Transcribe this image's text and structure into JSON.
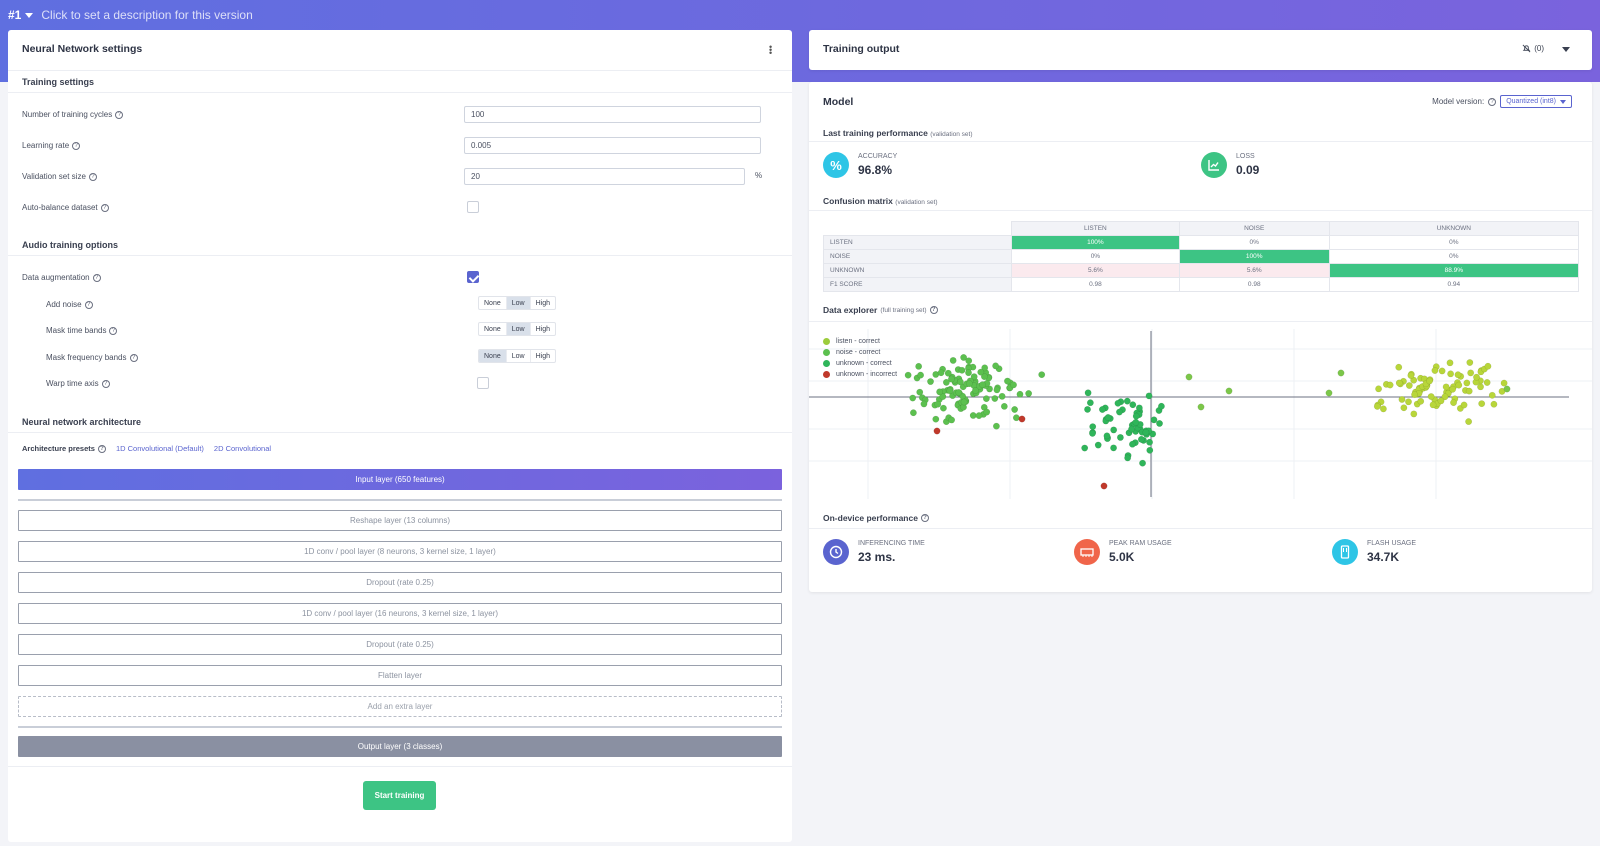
{
  "topbar": {
    "version": "#1",
    "description_placeholder": "Click to set a description for this version"
  },
  "left_panel": {
    "title": "Neural Network settings",
    "training_settings": {
      "heading": "Training settings",
      "cycles_label": "Number of training cycles",
      "cycles_value": "100",
      "lr_label": "Learning rate",
      "lr_value": "0.005",
      "val_label": "Validation set size",
      "val_value": "20",
      "val_unit": "%",
      "autobalance_label": "Auto-balance dataset"
    },
    "audio_options": {
      "heading": "Audio training options",
      "augmentation_label": "Data augmentation",
      "add_noise_label": "Add noise",
      "mask_time_label": "Mask time bands",
      "mask_freq_label": "Mask frequency bands",
      "warp_label": "Warp time axis",
      "levels": [
        "None",
        "Low",
        "High"
      ],
      "add_noise_selected": "Low",
      "mask_time_selected": "Low",
      "mask_freq_selected": "None"
    },
    "architecture": {
      "heading": "Neural network architecture",
      "presets_label": "Architecture presets",
      "preset_1": "1D Convolutional (Default)",
      "preset_2": "2D Convolutional",
      "layers": [
        "Input layer (650 features)",
        "Reshape layer (13 columns)",
        "1D conv / pool layer (8 neurons, 3 kernel size, 1 layer)",
        "Dropout (rate 0.25)",
        "1D conv / pool layer (16 neurons, 3 kernel size, 1 layer)",
        "Dropout (rate 0.25)",
        "Flatten layer",
        "Add an extra layer",
        "Output layer (3 classes)"
      ]
    },
    "start_button": "Start training"
  },
  "training_output": {
    "title": "Training output",
    "notifications": "(0)"
  },
  "model": {
    "title": "Model",
    "version_label": "Model version:",
    "version_value": "Quantized (int8)",
    "last_perf_heading": "Last training performance",
    "last_perf_note": "(validation set)",
    "accuracy_label": "ACCURACY",
    "accuracy_value": "96.8%",
    "loss_label": "LOSS",
    "loss_value": "0.09",
    "confusion_heading": "Confusion matrix",
    "confusion_note": "(validation set)",
    "confusion": {
      "columns": [
        "LISTEN",
        "NOISE",
        "UNKNOWN"
      ],
      "rows": [
        {
          "label": "LISTEN",
          "cells": [
            "100%",
            "0%",
            "0%"
          ]
        },
        {
          "label": "NOISE",
          "cells": [
            "0%",
            "100%",
            "0%"
          ]
        },
        {
          "label": "UNKNOWN",
          "cells": [
            "5.6%",
            "5.6%",
            "88.9%"
          ]
        },
        {
          "label": "F1 SCORE",
          "cells": [
            "0.98",
            "0.98",
            "0.94"
          ]
        }
      ]
    },
    "explorer_heading": "Data explorer",
    "explorer_note": "(full training set)",
    "legend": [
      {
        "label": "listen - correct",
        "color": "#9ccc3c"
      },
      {
        "label": "noise - correct",
        "color": "#5cc04f"
      },
      {
        "label": "unknown - correct",
        "color": "#2fb55a"
      },
      {
        "label": "unknown - incorrect",
        "color": "#c0392b"
      }
    ],
    "ondevice_heading": "On-device performance",
    "inferencing_label": "INFERENCING TIME",
    "inferencing_value": "23 ms.",
    "ram_label": "PEAK RAM USAGE",
    "ram_value": "5.0K",
    "flash_label": "FLASH USAGE",
    "flash_value": "34.7K"
  },
  "colors": {
    "accent": "#5a64cf",
    "success": "#3dc484",
    "header_start": "#5f6fe0",
    "header_end": "#7a63dd"
  }
}
